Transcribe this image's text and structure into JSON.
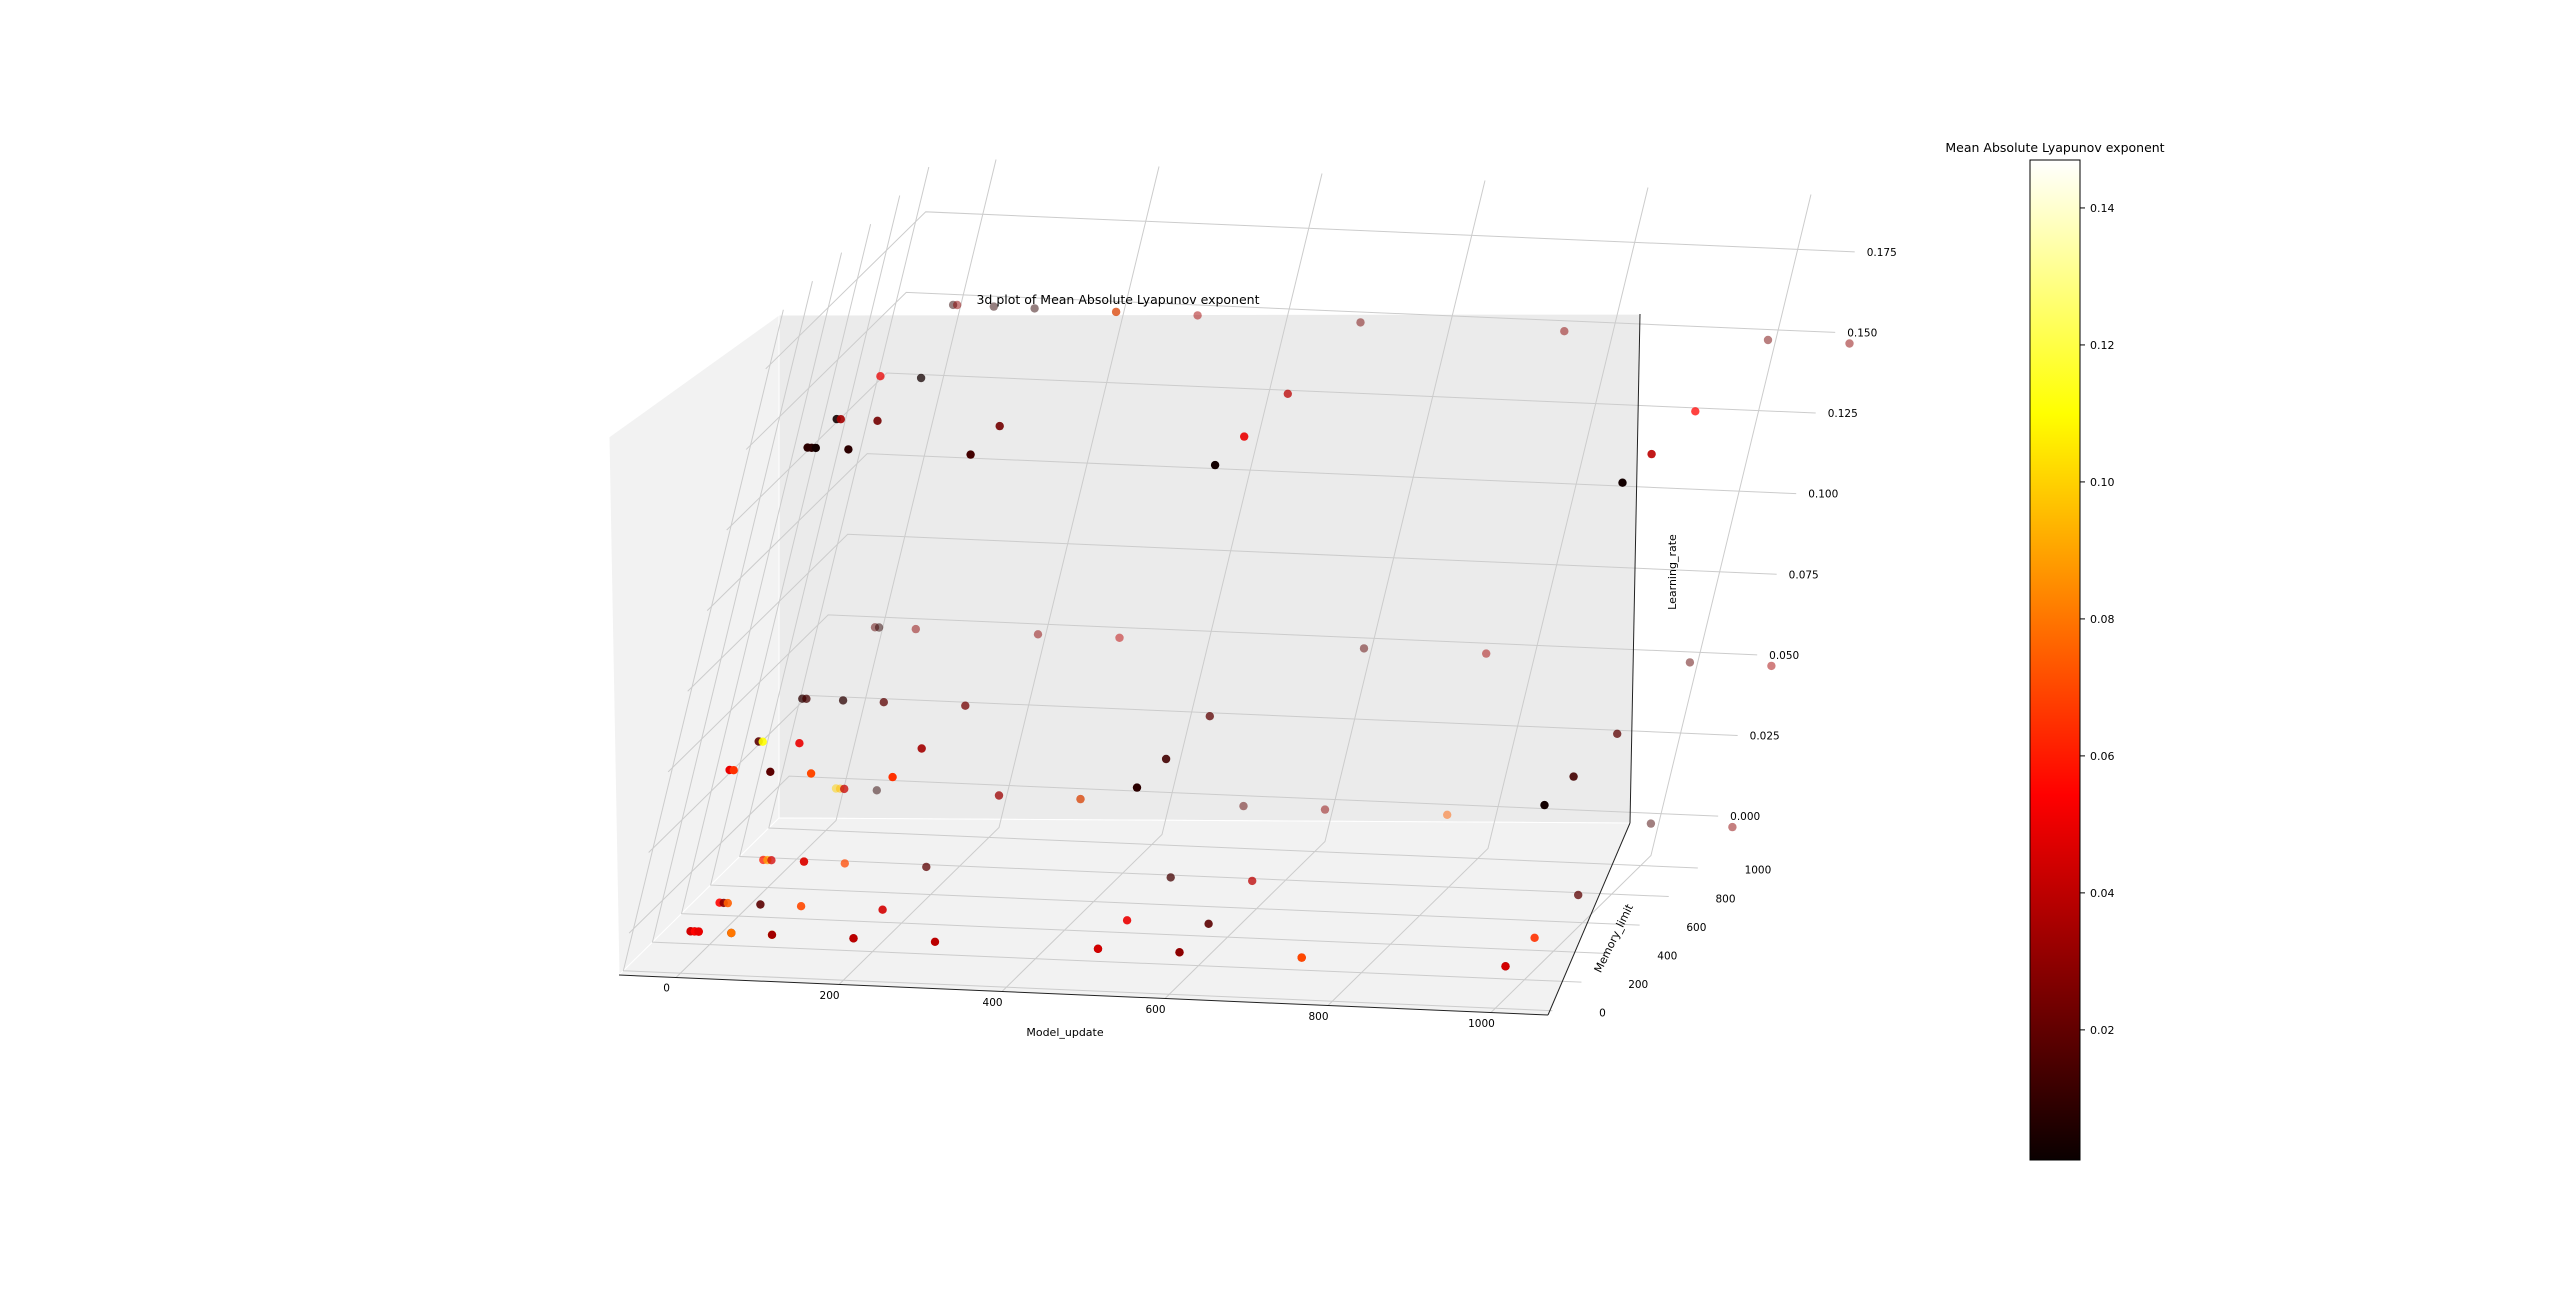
{
  "chart_data": {
    "type": "scatter",
    "title": "3d plot of Mean Absolute Lyapunov exponent",
    "xlabel": "Model_update",
    "ylabel": "Memory_limit",
    "zlabel": "Learning_rate",
    "x_ticks": [
      "0",
      "200",
      "400",
      "600",
      "800",
      "1000"
    ],
    "y_ticks": [
      "0",
      "200",
      "400",
      "600",
      "800",
      "1000"
    ],
    "z_ticks": [
      "0.000",
      "0.025",
      "0.050",
      "0.075",
      "0.100",
      "0.125",
      "0.150",
      "0.175"
    ],
    "colorbar": {
      "label": "Mean Absolute Lyapunov exponent",
      "colormap": "hot",
      "ticks": [
        "0.02",
        "0.04",
        "0.06",
        "0.08",
        "0.10",
        "0.12",
        "0.14"
      ]
    },
    "points": [
      {
        "x": 0,
        "y": 0,
        "z": 0.0,
        "c": 0.03
      },
      {
        "x": 0,
        "y": 0,
        "z": 0.0,
        "c": 0.045
      },
      {
        "x": 0,
        "y": 200,
        "z": 0.0,
        "c": 0.055
      },
      {
        "x": 0,
        "y": 500,
        "z": 0.0,
        "c": 0.06
      },
      {
        "x": 0,
        "y": 1000,
        "z": 0.0,
        "c": 0.1
      },
      {
        "x": 0,
        "y": 0,
        "z": 0.05,
        "c": 0.05
      },
      {
        "x": 0,
        "y": 200,
        "z": 0.05,
        "c": 0.02
      },
      {
        "x": 0,
        "y": 500,
        "z": 0.05,
        "c": 0.01
      },
      {
        "x": 0,
        "y": 1000,
        "z": 0.05,
        "c": 0.02
      },
      {
        "x": 0,
        "y": 0,
        "z": 0.15,
        "c": 0.01
      },
      {
        "x": 0,
        "y": 200,
        "z": 0.15,
        "c": 0.005
      },
      {
        "x": 0,
        "y": 500,
        "z": 0.15,
        "c": 0.05
      },
      {
        "x": 0,
        "y": 1000,
        "z": 0.15,
        "c": 0.01
      },
      {
        "x": 5,
        "y": 0,
        "z": 0.0,
        "c": 0.015
      },
      {
        "x": 5,
        "y": 0,
        "z": 0.0,
        "c": 0.055
      },
      {
        "x": 5,
        "y": 200,
        "z": 0.0,
        "c": 0.03
      },
      {
        "x": 5,
        "y": 500,
        "z": 0.0,
        "c": 0.09
      },
      {
        "x": 5,
        "y": 1000,
        "z": 0.0,
        "c": 0.095
      },
      {
        "x": 5,
        "y": 0,
        "z": 0.05,
        "c": 0.065
      },
      {
        "x": 5,
        "y": 200,
        "z": 0.05,
        "c": 0.11
      },
      {
        "x": 5,
        "y": 500,
        "z": 0.05,
        "c": 0.015
      },
      {
        "x": 5,
        "y": 1000,
        "z": 0.05,
        "c": 0.01
      },
      {
        "x": 5,
        "y": 0,
        "z": 0.15,
        "c": 0.01
      },
      {
        "x": 5,
        "y": 200,
        "z": 0.15,
        "c": 0.035
      },
      {
        "x": 5,
        "y": 1000,
        "z": 0.15,
        "c": 0.03
      },
      {
        "x": 10,
        "y": 0,
        "z": 0.0,
        "c": 0.035
      },
      {
        "x": 10,
        "y": 0,
        "z": 0.0,
        "c": 0.05
      },
      {
        "x": 10,
        "y": 200,
        "z": 0.0,
        "c": 0.075
      },
      {
        "x": 10,
        "y": 500,
        "z": 0.0,
        "c": 0.045
      },
      {
        "x": 10,
        "y": 1000,
        "z": 0.0,
        "c": 0.02
      },
      {
        "x": 10,
        "y": 1000,
        "z": 0.0,
        "c": 0.055
      },
      {
        "x": 10,
        "y": 0,
        "z": 0.15,
        "c": 0.005
      },
      {
        "x": 50,
        "y": 0,
        "z": 0.0,
        "c": 0.015
      },
      {
        "x": 50,
        "y": 0,
        "z": 0.0,
        "c": 0.08
      },
      {
        "x": 50,
        "y": 200,
        "z": 0.0,
        "c": 0.02
      },
      {
        "x": 50,
        "y": 500,
        "z": 0.0,
        "c": 0.06
      },
      {
        "x": 50,
        "y": 500,
        "z": 0.0,
        "c": 0.045
      },
      {
        "x": 50,
        "y": 1000,
        "z": 0.0,
        "c": 0.01
      },
      {
        "x": 50,
        "y": 0,
        "z": 0.05,
        "c": 0.02
      },
      {
        "x": 50,
        "y": 200,
        "z": 0.05,
        "c": 0.05
      },
      {
        "x": 50,
        "y": 500,
        "z": 0.05,
        "c": 0.01
      },
      {
        "x": 50,
        "y": 1000,
        "z": 0.05,
        "c": 0.03
      },
      {
        "x": 50,
        "y": 0,
        "z": 0.15,
        "c": 0.01
      },
      {
        "x": 50,
        "y": 200,
        "z": 0.15,
        "c": 0.025
      },
      {
        "x": 50,
        "y": 500,
        "z": 0.15,
        "c": 0.005
      },
      {
        "x": 50,
        "y": 1000,
        "z": 0.15,
        "c": 0.01
      },
      {
        "x": 100,
        "y": 0,
        "z": 0.0,
        "c": 0.1
      },
      {
        "x": 100,
        "y": 0,
        "z": 0.0,
        "c": 0.035
      },
      {
        "x": 100,
        "y": 200,
        "z": 0.0,
        "c": 0.07
      },
      {
        "x": 100,
        "y": 500,
        "z": 0.0,
        "c": 0.07
      },
      {
        "x": 100,
        "y": 0,
        "z": 0.05,
        "c": 0.07
      },
      {
        "x": 100,
        "y": 500,
        "z": 0.05,
        "c": 0.02
      },
      {
        "x": 100,
        "y": 1000,
        "z": 0.15,
        "c": 0.01
      },
      {
        "x": 200,
        "y": 0,
        "z": 0.0,
        "c": 0.02
      },
      {
        "x": 200,
        "y": 0,
        "z": 0.0,
        "c": 0.04
      },
      {
        "x": 200,
        "y": 200,
        "z": 0.0,
        "c": 0.045
      },
      {
        "x": 200,
        "y": 500,
        "z": 0.0,
        "c": 0.02
      },
      {
        "x": 200,
        "y": 1000,
        "z": 0.0,
        "c": 0.04
      },
      {
        "x": 200,
        "y": 1000,
        "z": 0.0,
        "c": 0.03
      },
      {
        "x": 200,
        "y": 0,
        "z": 0.05,
        "c": 0.065
      },
      {
        "x": 200,
        "y": 200,
        "z": 0.05,
        "c": 0.035
      },
      {
        "x": 200,
        "y": 500,
        "z": 0.05,
        "c": 0.025
      },
      {
        "x": 200,
        "y": 1000,
        "z": 0.05,
        "c": 0.03
      },
      {
        "x": 200,
        "y": 0,
        "z": 0.15,
        "c": 0.015
      },
      {
        "x": 200,
        "y": 200,
        "z": 0.15,
        "c": 0.025
      },
      {
        "x": 200,
        "y": 1000,
        "z": 0.15,
        "c": 0.03
      },
      {
        "x": 200,
        "y": 1000,
        "z": 0.15,
        "c": 0.075
      },
      {
        "x": 300,
        "y": 0,
        "z": 0.0,
        "c": 0.04
      },
      {
        "x": 300,
        "y": 1000,
        "z": 0.0,
        "c": 0.03
      },
      {
        "x": 300,
        "y": 1000,
        "z": 0.0,
        "c": 0.075
      },
      {
        "x": 300,
        "y": 1000,
        "z": 0.05,
        "c": 0.04
      },
      {
        "x": 300,
        "y": 1000,
        "z": 0.15,
        "c": 0.035
      },
      {
        "x": 500,
        "y": 0,
        "z": 0.0,
        "c": 0.02
      },
      {
        "x": 500,
        "y": 0,
        "z": 0.0,
        "c": 0.045
      },
      {
        "x": 500,
        "y": 200,
        "z": 0.0,
        "c": 0.05
      },
      {
        "x": 500,
        "y": 500,
        "z": 0.0,
        "c": 0.015
      },
      {
        "x": 500,
        "y": 1000,
        "z": 0.0,
        "c": 0.02
      },
      {
        "x": 500,
        "y": 0,
        "z": 0.05,
        "c": 0.01
      },
      {
        "x": 500,
        "y": 200,
        "z": 0.05,
        "c": 0.015
      },
      {
        "x": 500,
        "y": 500,
        "z": 0.05,
        "c": 0.02
      },
      {
        "x": 500,
        "y": 0,
        "z": 0.15,
        "c": 0.005
      },
      {
        "x": 500,
        "y": 200,
        "z": 0.15,
        "c": 0.05
      },
      {
        "x": 500,
        "y": 500,
        "z": 0.15,
        "c": 0.04
      },
      {
        "x": 500,
        "y": 1000,
        "z": 0.15,
        "c": 0.025
      },
      {
        "x": 600,
        "y": 0,
        "z": 0.0,
        "c": 0.05
      },
      {
        "x": 600,
        "y": 0,
        "z": 0.0,
        "c": 0.03
      },
      {
        "x": 600,
        "y": 200,
        "z": 0.0,
        "c": 0.02
      },
      {
        "x": 600,
        "y": 500,
        "z": 0.0,
        "c": 0.04
      },
      {
        "x": 600,
        "y": 1000,
        "z": 0.0,
        "c": 0.03
      },
      {
        "x": 600,
        "y": 1000,
        "z": 0.05,
        "c": 0.02
      },
      {
        "x": 750,
        "y": 0,
        "z": 0.0,
        "c": 0.04
      },
      {
        "x": 750,
        "y": 0,
        "z": 0.0,
        "c": 0.07
      },
      {
        "x": 750,
        "y": 1000,
        "z": 0.0,
        "c": 0.075
      },
      {
        "x": 750,
        "y": 1000,
        "z": 0.05,
        "c": 0.035
      },
      {
        "x": 750,
        "y": 1000,
        "z": 0.15,
        "c": 0.03
      },
      {
        "x": 1000,
        "y": 0,
        "z": 0.0,
        "c": 0.015
      },
      {
        "x": 1000,
        "y": 0,
        "z": 0.0,
        "c": 0.045
      },
      {
        "x": 1000,
        "y": 200,
        "z": 0.0,
        "c": 0.065
      },
      {
        "x": 1000,
        "y": 500,
        "z": 0.0,
        "c": 0.02
      },
      {
        "x": 1000,
        "y": 1000,
        "z": 0.0,
        "c": 0.015
      },
      {
        "x": 1000,
        "y": 0,
        "z": 0.05,
        "c": 0.005
      },
      {
        "x": 1000,
        "y": 200,
        "z": 0.05,
        "c": 0.015
      },
      {
        "x": 1000,
        "y": 500,
        "z": 0.05,
        "c": 0.02
      },
      {
        "x": 1000,
        "y": 0,
        "z": 0.15,
        "c": 0.005
      },
      {
        "x": 1000,
        "y": 200,
        "z": 0.15,
        "c": 0.04
      },
      {
        "x": 1000,
        "y": 500,
        "z": 0.15,
        "c": 0.055
      },
      {
        "x": 1000,
        "y": 1000,
        "z": 0.15,
        "c": 0.025
      },
      {
        "x": 1000,
        "y": 1000,
        "z": 0.05,
        "c": 0.02
      },
      {
        "x": 1100,
        "y": 1000,
        "z": 0.0,
        "c": 0.03
      },
      {
        "x": 1100,
        "y": 1000,
        "z": 0.05,
        "c": 0.035
      },
      {
        "x": 1100,
        "y": 1000,
        "z": 0.15,
        "c": 0.03
      }
    ]
  }
}
